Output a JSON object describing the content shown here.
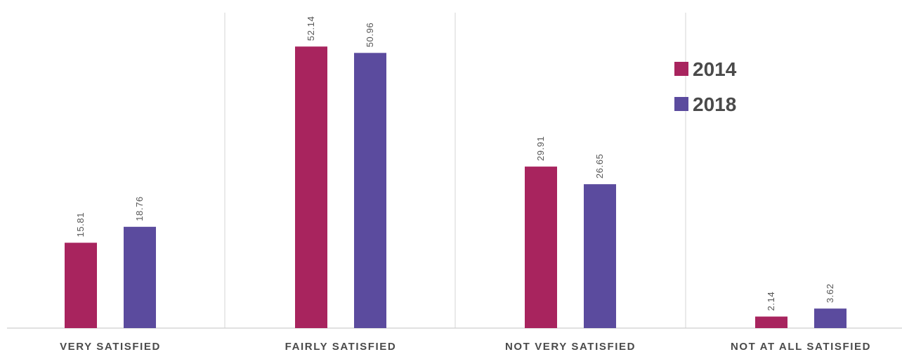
{
  "chart_data": {
    "type": "bar",
    "categories": [
      "VERY SATISFIED",
      "FAIRLY SATISFIED",
      "NOT VERY SATISFIED",
      "NOT AT ALL SATISFIED"
    ],
    "series": [
      {
        "name": "2014",
        "color": "#a8245e",
        "values": [
          15.81,
          52.14,
          29.91,
          2.14
        ]
      },
      {
        "name": "2018",
        "color": "#5b4b9e",
        "values": [
          18.76,
          50.96,
          26.65,
          3.62
        ]
      }
    ],
    "data_labels": [
      [
        "15.81",
        "52.14",
        "29.91",
        "2.14"
      ],
      [
        "18.76",
        "50.96",
        "26.65",
        "3.62"
      ]
    ],
    "title": "",
    "xlabel": "",
    "ylabel": "",
    "ylim": [
      0,
      56
    ],
    "grid": false,
    "legend": "top-right"
  }
}
